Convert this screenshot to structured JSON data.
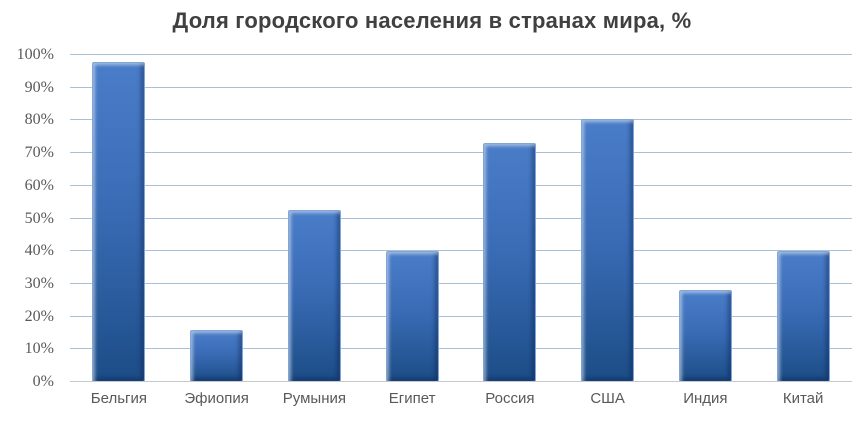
{
  "title": "Доля городского населения в странах мира, %",
  "colors": {
    "title_color": "#404040",
    "tick_label": "#595959",
    "gridline": "#a9c0d6",
    "axis_line": "#c3c9cf",
    "bar_top": "#4a7dc8",
    "bar_mid": "#3a6cb6",
    "bar_bottom": "#1c4d87",
    "bar_edge_highlight": "#7fa6d9"
  },
  "chart_data": {
    "type": "bar",
    "title": "Доля городского населения в странах мира, %",
    "categories": [
      "Бельгия",
      "Эфиопия",
      "Румыния",
      "Египет",
      "Россия",
      "США",
      "Индия",
      "Китай"
    ],
    "values": [
      98,
      16,
      52.5,
      40,
      73,
      80.5,
      28,
      40
    ],
    "xlabel": "",
    "ylabel": "",
    "ylim": [
      0,
      100
    ],
    "y_tick_step": 10,
    "y_tick_labels": [
      "0%",
      "10%",
      "20%",
      "30%",
      "40%",
      "50%",
      "60%",
      "70%",
      "80%",
      "90%",
      "100%"
    ],
    "grid": true,
    "legend_position": "none"
  }
}
